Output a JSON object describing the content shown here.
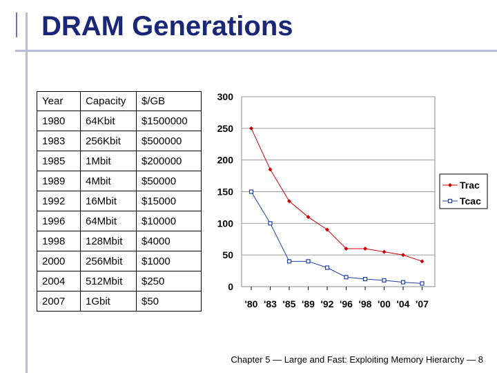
{
  "slide": {
    "title": "DRAM Generations",
    "footer": "Chapter 5 — Large and Fast: Exploiting Memory Hierarchy — 8"
  },
  "table": {
    "headers": [
      "Year",
      "Capacity",
      "$/GB"
    ],
    "rows": [
      [
        "1980",
        "64Kbit",
        "$1500000"
      ],
      [
        "1983",
        "256Kbit",
        "$500000"
      ],
      [
        "1985",
        "1Mbit",
        "$200000"
      ],
      [
        "1989",
        "4Mbit",
        "$50000"
      ],
      [
        "1992",
        "16Mbit",
        "$15000"
      ],
      [
        "1996",
        "64Mbit",
        "$10000"
      ],
      [
        "1998",
        "128Mbit",
        "$4000"
      ],
      [
        "2000",
        "256Mbit",
        "$1000"
      ],
      [
        "2004",
        "512Mbit",
        "$250"
      ],
      [
        "2007",
        "1Gbit",
        "$50"
      ]
    ]
  },
  "chart_data": {
    "type": "line",
    "categories": [
      "'80",
      "'83",
      "'85",
      "'89",
      "'92",
      "'96",
      "'98",
      "'00",
      "'04",
      "'07"
    ],
    "series": [
      {
        "name": "Trac",
        "values": [
          250,
          185,
          135,
          110,
          90,
          60,
          60,
          55,
          50,
          40
        ],
        "color": "#cc0000",
        "marker": "diamond"
      },
      {
        "name": "Tcac",
        "values": [
          150,
          100,
          40,
          40,
          30,
          15,
          12,
          10,
          7,
          5
        ],
        "color": "#1a3fa8",
        "marker": "square"
      }
    ],
    "ylim": [
      0,
      300
    ],
    "yticks": [
      "0",
      "50",
      "100",
      "150",
      "200",
      "250",
      "300"
    ],
    "grid": true,
    "legend": "right"
  }
}
